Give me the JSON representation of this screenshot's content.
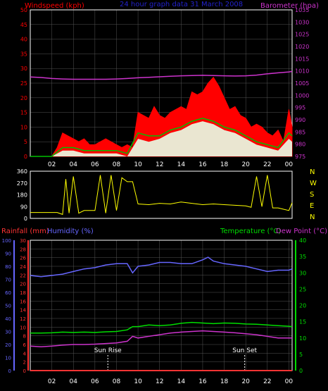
{
  "colors": {
    "background": "#000000",
    "plot_border": "#ffffff",
    "grid": "#555555",
    "windspeed": "#ff0000",
    "wind_avg": "#00c000",
    "wind_gust": "#e8ffe8",
    "barometer": "#cc33cc",
    "title": "#2222cc",
    "direction": "#ffff00",
    "compass": "#ffff00",
    "rainfall": "#ff3333",
    "humidity": "#6666ff",
    "temperature": "#00dd00",
    "dewpoint": "#cc33cc",
    "sun_marker": "#ffffff"
  },
  "chart_data": [
    {
      "type": "line",
      "id": "wind-baro",
      "title": "24 hour graph data  31 March 2008",
      "left_axis_label": "Windspeed (kph)",
      "right_axis_label": "Barometer (hpa)",
      "left_ylim": [
        0,
        50
      ],
      "left_ticks": [
        "0",
        "5",
        "10",
        "15",
        "20",
        "25",
        "30",
        "35",
        "40",
        "45",
        "50"
      ],
      "right_ylim": [
        975,
        1035
      ],
      "right_ticks": [
        "975",
        "980",
        "985",
        "990",
        "995",
        "1000",
        "1005",
        "1010",
        "1015",
        "1020",
        "1025",
        "1030",
        "1035"
      ],
      "x_ticks": [
        "02",
        "04",
        "06",
        "08",
        "10",
        "12",
        "14",
        "16",
        "18",
        "20",
        "22",
        "00"
      ],
      "xlim_hours": [
        0,
        24.3
      ],
      "grid": true,
      "series": [
        {
          "name": "Windspeed (kph)",
          "axis": "left",
          "x": [
            0,
            0.5,
            1,
            1.5,
            2,
            2.5,
            3,
            3.5,
            4,
            4.5,
            5,
            5.5,
            6,
            6.5,
            7,
            7.5,
            8,
            8.5,
            9,
            9.5,
            10,
            10.5,
            11,
            11.5,
            12,
            12.5,
            13,
            13.5,
            14,
            14.5,
            15,
            15.5,
            16,
            16.5,
            17,
            17.5,
            18,
            18.5,
            19,
            19.5,
            20,
            20.5,
            21,
            21.5,
            22,
            22.5,
            23,
            23.5,
            24,
            24.3
          ],
          "values": [
            0,
            0,
            0,
            0,
            0,
            3,
            8,
            7,
            6,
            5,
            6,
            4,
            4,
            5,
            6,
            5,
            4,
            3,
            4,
            3,
            15,
            14,
            13,
            17,
            14,
            13,
            15,
            16,
            17,
            16,
            22,
            21,
            22,
            25,
            27,
            24,
            20,
            16,
            17,
            14,
            13,
            10,
            11,
            10,
            8,
            7,
            9,
            5,
            16,
            10
          ]
        },
        {
          "name": "Average",
          "axis": "left",
          "x": [
            0,
            1,
            2,
            3,
            4,
            5,
            6,
            7,
            8,
            9,
            10,
            11,
            12,
            13,
            14,
            15,
            16,
            17,
            18,
            19,
            20,
            21,
            22,
            23,
            24,
            24.3
          ],
          "values": [
            0,
            0,
            0,
            3,
            3,
            2,
            2,
            2,
            2,
            1,
            8,
            7,
            7,
            9,
            10,
            12,
            13,
            12,
            10,
            9,
            7,
            5,
            4,
            3,
            8,
            7
          ]
        },
        {
          "name": "Gust",
          "axis": "left",
          "x": [
            0,
            1,
            2,
            3,
            4,
            5,
            6,
            7,
            8,
            9,
            10,
            11,
            12,
            13,
            14,
            15,
            16,
            17,
            18,
            19,
            20,
            21,
            22,
            23,
            24,
            24.3
          ],
          "values": [
            0,
            0,
            0,
            2,
            2,
            1,
            1,
            1,
            1,
            0,
            6,
            5,
            6,
            8,
            9,
            11,
            12,
            11,
            9,
            8,
            6,
            4,
            3,
            2,
            6,
            5
          ]
        },
        {
          "name": "Barometer (hpa)",
          "axis": "right",
          "x": [
            0,
            1,
            2,
            3,
            4,
            5,
            6,
            7,
            8,
            9,
            10,
            11,
            12,
            13,
            14,
            15,
            16,
            17,
            18,
            19,
            20,
            21,
            22,
            23,
            24,
            24.3
          ],
          "values": [
            1007.5,
            1007.3,
            1006.9,
            1006.7,
            1006.6,
            1006.6,
            1006.6,
            1006.6,
            1006.7,
            1006.9,
            1007.2,
            1007.4,
            1007.6,
            1007.8,
            1008.0,
            1008.1,
            1008.2,
            1008.1,
            1008.0,
            1007.9,
            1008.0,
            1008.3,
            1008.8,
            1009.2,
            1009.6,
            1009.8
          ]
        }
      ]
    },
    {
      "type": "line",
      "id": "direction",
      "left_ticks": [
        "0",
        "90",
        "180",
        "270",
        "360"
      ],
      "ylim": [
        0,
        360
      ],
      "compass": [
        "N",
        "W",
        "S",
        "E",
        "N"
      ],
      "series": [
        {
          "name": "Wind Direction",
          "x": [
            0,
            1,
            2,
            2.5,
            3,
            3.3,
            3.6,
            4,
            4.5,
            5,
            5.5,
            6,
            6.5,
            7,
            7.5,
            8,
            8.5,
            9,
            9.5,
            10,
            11,
            12,
            13,
            14,
            15,
            16,
            17,
            18,
            19,
            20,
            20.5,
            21,
            21.5,
            22,
            22.5,
            23,
            23.5,
            24,
            24.3
          ],
          "values": [
            45,
            45,
            45,
            45,
            30,
            300,
            40,
            320,
            40,
            60,
            60,
            60,
            330,
            40,
            330,
            60,
            310,
            280,
            280,
            110,
            105,
            115,
            110,
            125,
            115,
            105,
            110,
            105,
            100,
            95,
            85,
            320,
            90,
            330,
            80,
            80,
            70,
            60,
            120
          ]
        }
      ]
    },
    {
      "type": "line",
      "id": "temp-hum",
      "labels": {
        "rainfall": "Rainfall (mm)",
        "humidity": "Humidity (%)",
        "temperature": "Temperature (°C)",
        "dewpoint": "Dew Point (°C)"
      },
      "humidity_ticks": [
        "0",
        "10",
        "20",
        "30",
        "40",
        "50",
        "60",
        "70",
        "80",
        "90",
        "100"
      ],
      "rain_ticks": [
        "0",
        "2",
        "4",
        "6",
        "8",
        "10",
        "12",
        "14",
        "16",
        "18",
        "20",
        "22",
        "24",
        "26",
        "28",
        "30"
      ],
      "temp_ticks": [
        "0",
        "5",
        "10",
        "15",
        "20",
        "25",
        "30",
        "35",
        "40"
      ],
      "x_ticks": [
        "02",
        "04",
        "06",
        "08",
        "10",
        "12",
        "14",
        "16",
        "18",
        "20",
        "22",
        "00"
      ],
      "annotations": [
        {
          "label": "Sun Rise",
          "hour": 7.2
        },
        {
          "label": "Sun Set",
          "hour": 19.9
        }
      ],
      "series": [
        {
          "name": "Humidity (%)",
          "axis": "humidity",
          "x": [
            0,
            1,
            2,
            3,
            4,
            5,
            6,
            7,
            8,
            9,
            9.5,
            10,
            11,
            12,
            13,
            14,
            15,
            16,
            16.5,
            17,
            18,
            19,
            20,
            21,
            22,
            23,
            24,
            24.3
          ],
          "values": [
            73,
            72,
            73,
            74,
            76,
            78,
            79,
            81,
            82,
            82,
            75,
            80,
            81,
            83,
            83,
            82,
            82,
            85,
            87,
            84,
            82,
            81,
            80,
            78,
            76,
            77,
            77,
            78
          ]
        },
        {
          "name": "Temperature (°C)",
          "axis": "temp",
          "x": [
            0,
            1,
            2,
            3,
            4,
            5,
            6,
            7,
            8,
            9,
            9.5,
            10,
            11,
            12,
            13,
            14,
            15,
            16,
            17,
            18,
            19,
            20,
            21,
            22,
            23,
            24,
            24.3
          ],
          "values": [
            11.5,
            11.5,
            11.6,
            11.8,
            11.7,
            11.8,
            11.7,
            11.9,
            12.0,
            12.5,
            13.5,
            13.5,
            14.0,
            13.8,
            14.0,
            14.5,
            14.8,
            14.6,
            14.4,
            14.6,
            14.5,
            14.3,
            14.2,
            14.0,
            13.8,
            13.6,
            13.5
          ]
        },
        {
          "name": "Dew Point (°C)",
          "axis": "temp",
          "x": [
            0,
            1,
            2,
            3,
            4,
            5,
            6,
            7,
            8,
            9,
            9.5,
            10,
            11,
            12,
            13,
            14,
            15,
            16,
            17,
            18,
            19,
            20,
            21,
            22,
            23,
            24,
            24.3
          ],
          "values": [
            7.5,
            7.3,
            7.5,
            7.8,
            8.0,
            8.0,
            8.1,
            8.3,
            8.5,
            9.0,
            10.5,
            10.0,
            10.5,
            11.0,
            11.5,
            11.8,
            12.0,
            12.2,
            12.0,
            11.8,
            11.6,
            11.3,
            11.0,
            10.5,
            10.0,
            10.0,
            10.0
          ]
        },
        {
          "name": "Rainfall (mm)",
          "axis": "rain",
          "x": [
            0,
            24.3
          ],
          "values": [
            0,
            0
          ]
        }
      ]
    }
  ]
}
